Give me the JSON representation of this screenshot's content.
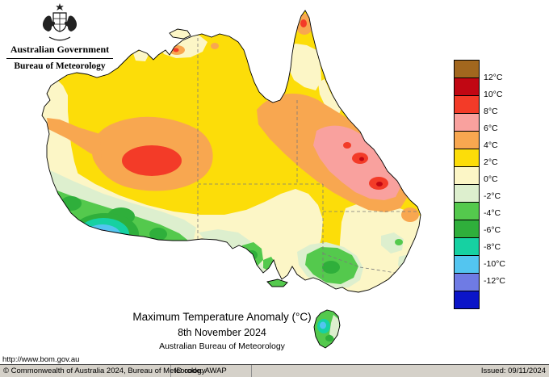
{
  "header": {
    "government_label": "Australian Government",
    "bureau_label": "Bureau of Meteorology"
  },
  "legend": {
    "cells": [
      {
        "name": "above-12",
        "color": "#A2671E"
      },
      {
        "name": "10-to-12",
        "color": "#C10713"
      },
      {
        "name": "8-to-10",
        "color": "#F33B28"
      },
      {
        "name": "6-to-8",
        "color": "#F9A19E"
      },
      {
        "name": "4-to-6",
        "color": "#F8A750"
      },
      {
        "name": "2-to-4",
        "color": "#FCDD09"
      },
      {
        "name": "0-to-2",
        "color": "#FCF6C6"
      },
      {
        "name": "neg2-to-0",
        "color": "#DDEFCE"
      },
      {
        "name": "neg4-to-neg2",
        "color": "#54C94D"
      },
      {
        "name": "neg6-to-neg4",
        "color": "#2FAF3B"
      },
      {
        "name": "neg8-to-neg6",
        "color": "#16D1A2"
      },
      {
        "name": "neg10-to-neg8",
        "color": "#53C5F0"
      },
      {
        "name": "neg12-to-neg10",
        "color": "#6F7BE4"
      },
      {
        "name": "below-neg12",
        "color": "#0B15C8"
      }
    ],
    "labels": [
      "12°C",
      "10°C",
      "8°C",
      "6°C",
      "4°C",
      "2°C",
      "0°C",
      "-2°C",
      "-4°C",
      "-6°C",
      "-8°C",
      "-10°C",
      "-12°C"
    ]
  },
  "caption": {
    "title": "Maximum Temperature Anomaly (°C)",
    "date": "8th November 2024",
    "source": "Australian Bureau of Meteorology"
  },
  "url": "http://www.bom.gov.au",
  "footer": {
    "copyright": "© Commonwealth of Australia 2024, Bureau of Meteorology",
    "id_code": "ID code: AWAP",
    "issued": "Issued: 09/11/2024"
  }
}
